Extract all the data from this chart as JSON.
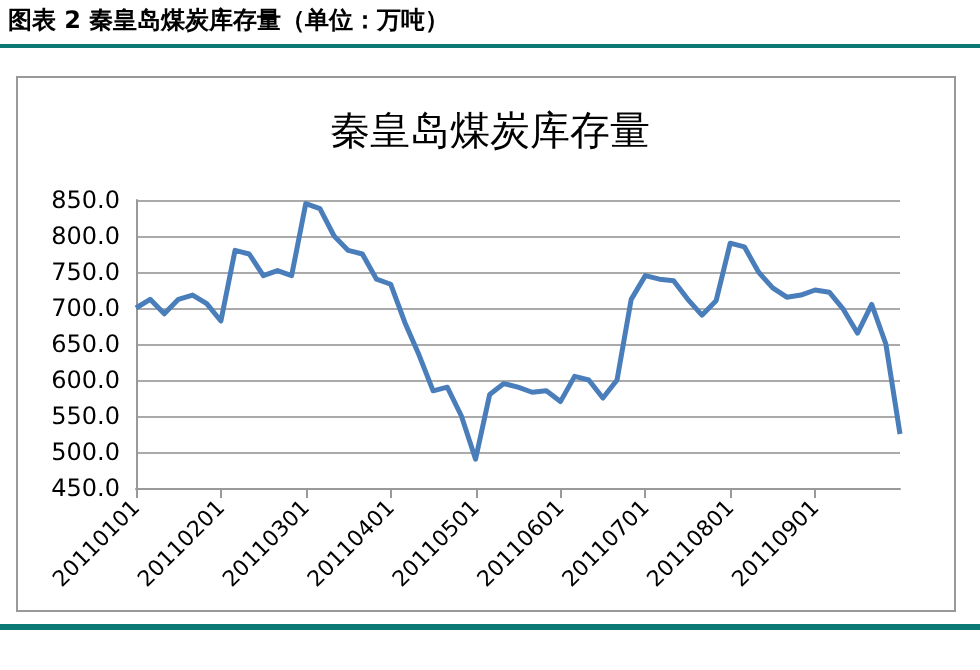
{
  "chart_data": {
    "type": "line",
    "title": "图表 2   秦皇岛煤炭库存量（单位：万吨）",
    "subtitle": "秦皇岛煤炭库存量",
    "categories": [
      "20110101",
      null,
      null,
      null,
      null,
      null,
      "20110201",
      null,
      null,
      null,
      null,
      null,
      "20110301",
      null,
      null,
      null,
      null,
      null,
      "20110401",
      null,
      null,
      null,
      null,
      null,
      "20110501",
      null,
      null,
      null,
      null,
      null,
      "20110601",
      null,
      null,
      null,
      null,
      null,
      "20110701",
      null,
      null,
      null,
      null,
      null,
      "20110801",
      null,
      null,
      null,
      null,
      null,
      "20110901",
      null,
      null,
      null,
      null,
      null,
      null
    ],
    "series": [
      {
        "color": "#4a7ebb",
        "values": [
          700,
          712,
          692,
          712,
          718,
          706,
          682,
          780,
          775,
          745,
          752,
          745,
          845,
          838,
          800,
          780,
          775,
          740,
          733,
          680,
          635,
          585,
          590,
          550,
          490,
          580,
          595,
          590,
          583,
          585,
          570,
          605,
          600,
          575,
          600,
          712,
          745,
          740,
          738,
          712,
          690,
          710,
          790,
          785,
          750,
          728,
          715,
          718,
          725,
          722,
          698,
          665,
          705,
          650,
          525
        ]
      }
    ],
    "ylim": [
      450,
      850
    ],
    "yticks": [
      {
        "value": 450,
        "label": "450.0"
      },
      {
        "value": 500,
        "label": "500.0"
      },
      {
        "value": 550,
        "label": "550.0"
      },
      {
        "value": 600,
        "label": "600.0"
      },
      {
        "value": 650,
        "label": "650.0"
      },
      {
        "value": 700,
        "label": "700.0"
      },
      {
        "value": 750,
        "label": "750.0"
      },
      {
        "value": 800,
        "label": "800.0"
      },
      {
        "value": 850,
        "label": "850.0"
      }
    ],
    "grid": "y",
    "marker": "none",
    "line_style": "solid"
  }
}
